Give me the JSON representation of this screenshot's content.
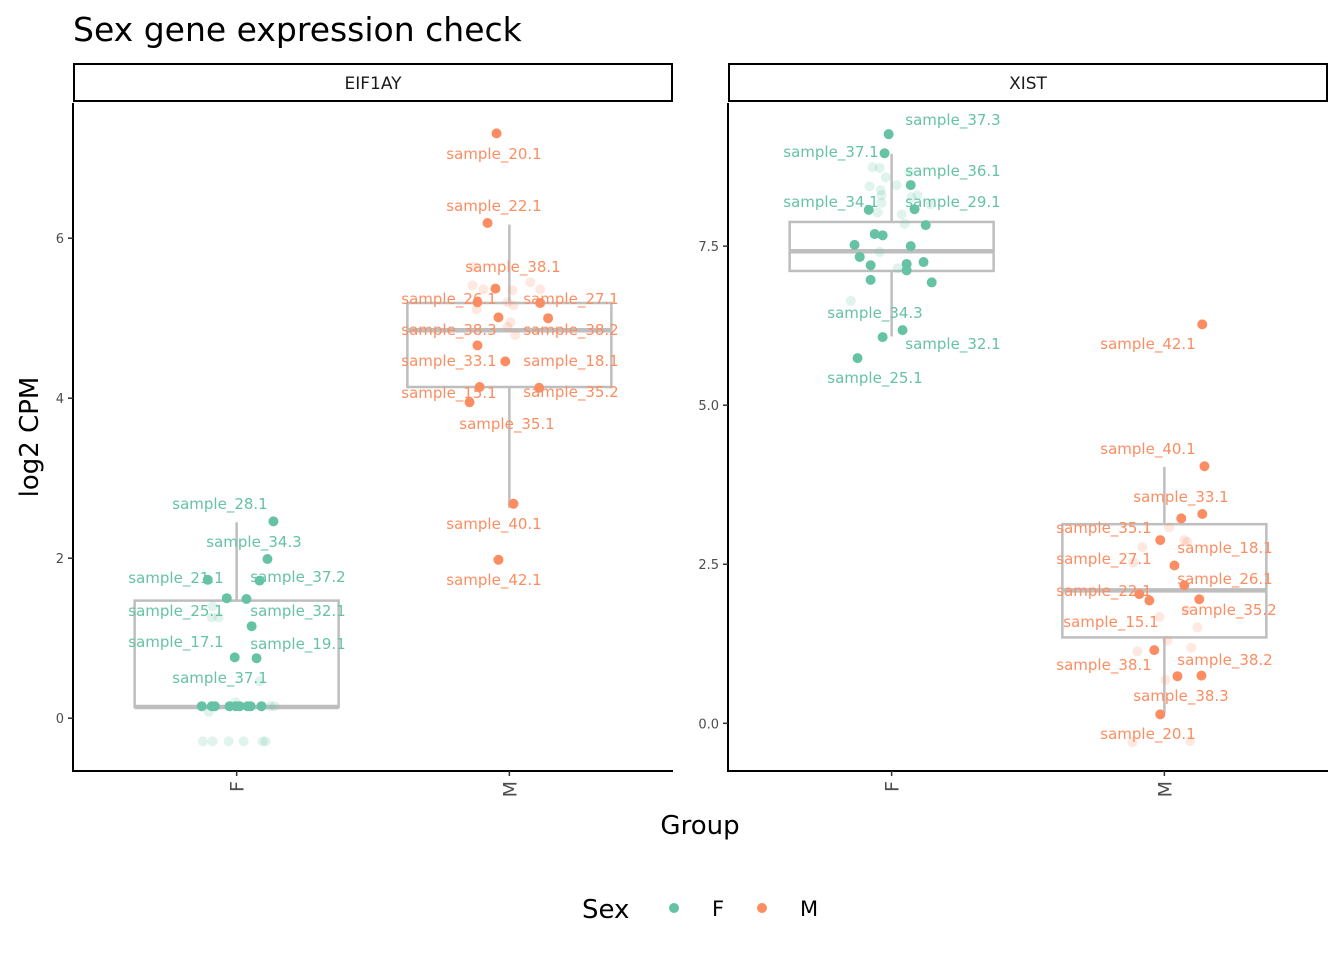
{
  "chart_data": {
    "type": "scatter",
    "title": "Sex gene expression check",
    "xlabel": "Group",
    "ylabel": "log2 CPM",
    "legend": {
      "title": "Sex",
      "position": "bottom",
      "entries": [
        {
          "label": "F",
          "color": "#66c2a5"
        },
        {
          "label": "M",
          "color": "#fc8d62"
        }
      ]
    },
    "box_color": "#bebebe",
    "categories": [
      "F",
      "M"
    ],
    "panels": [
      {
        "strip": "EIF1AY",
        "ylim": [
          -0.66,
          7.69
        ],
        "yticks": [
          {
            "v": 0,
            "label": "0"
          },
          {
            "v": 2,
            "label": "2"
          },
          {
            "v": 4,
            "label": "4"
          },
          {
            "v": 6,
            "label": "6"
          }
        ],
        "boxes": [
          {
            "group": "F",
            "q1": 0.14,
            "median": 0.14,
            "q3": 1.47,
            "whisker_low": 0.14,
            "whisker_high": 2.45
          },
          {
            "group": "M",
            "q1": 4.14,
            "median": 4.85,
            "q3": 5.19,
            "whisker_low": 2.63,
            "whisker_high": 6.17
          }
        ],
        "points": [
          {
            "sex": "F",
            "x": 1.135,
            "y": 2.46,
            "label": "sample_28.1"
          },
          {
            "sex": "F",
            "x": 1.113,
            "y": 1.99,
            "label": "sample_34.3"
          },
          {
            "sex": "F",
            "x": 0.894,
            "y": 1.73,
            "label": "sample_21.1"
          },
          {
            "sex": "F",
            "x": 1.084,
            "y": 1.72,
            "label": "sample_37.2"
          },
          {
            "sex": "F",
            "x": 0.964,
            "y": 1.5,
            "label": "sample_25.1"
          },
          {
            "sex": "F",
            "x": 1.036,
            "y": 1.49,
            "label": "sample_32.1"
          },
          {
            "sex": "F",
            "x": 1.055,
            "y": 1.15,
            "label": ""
          },
          {
            "sex": "F",
            "x": 0.993,
            "y": 0.76,
            "label": "sample_17.1"
          },
          {
            "sex": "F",
            "x": 1.073,
            "y": 0.75,
            "label": "sample_19.1"
          },
          {
            "sex": "F",
            "x": 0.996,
            "y": 0.15,
            "label": "sample_37.1"
          },
          {
            "sex": "F",
            "x": 0.872,
            "y": 0.15,
            "label": ""
          },
          {
            "sex": "F",
            "x": 0.909,
            "y": 0.15,
            "label": ""
          },
          {
            "sex": "F",
            "x": 0.92,
            "y": 0.15,
            "label": ""
          },
          {
            "sex": "F",
            "x": 0.974,
            "y": 0.15,
            "label": ""
          },
          {
            "sex": "F",
            "x": 1.011,
            "y": 0.15,
            "label": ""
          },
          {
            "sex": "F",
            "x": 1.04,
            "y": 0.15,
            "label": ""
          },
          {
            "sex": "F",
            "x": 1.051,
            "y": 0.15,
            "label": ""
          },
          {
            "sex": "F",
            "x": 1.091,
            "y": 0.15,
            "label": ""
          },
          {
            "sex": "M",
            "x": 1.953,
            "y": 7.31,
            "label": "sample_20.1"
          },
          {
            "sex": "M",
            "x": 1.92,
            "y": 6.19,
            "label": "sample_22.1"
          },
          {
            "sex": "M",
            "x": 1.949,
            "y": 5.37,
            "label": "sample_38.1"
          },
          {
            "sex": "M",
            "x": 1.883,
            "y": 5.2,
            "label": "sample_26.1"
          },
          {
            "sex": "M",
            "x": 2.113,
            "y": 5.19,
            "label": "sample_27.1"
          },
          {
            "sex": "M",
            "x": 1.96,
            "y": 5.01,
            "label": "sample_38.3"
          },
          {
            "sex": "M",
            "x": 2.142,
            "y": 5.0,
            "label": "sample_38.2"
          },
          {
            "sex": "M",
            "x": 1.883,
            "y": 4.66,
            "label": "sample_33.1"
          },
          {
            "sex": "M",
            "x": 1.985,
            "y": 4.46,
            "label": "sample_18.1"
          },
          {
            "sex": "M",
            "x": 1.891,
            "y": 4.14,
            "label": "sample_15.1"
          },
          {
            "sex": "M",
            "x": 2.109,
            "y": 4.13,
            "label": "sample_35.2"
          },
          {
            "sex": "M",
            "x": 1.854,
            "y": 3.95,
            "label": "sample_35.1"
          },
          {
            "sex": "M",
            "x": 2.015,
            "y": 2.68,
            "label": "sample_40.1"
          },
          {
            "sex": "M",
            "x": 1.96,
            "y": 1.98,
            "label": "sample_42.1"
          }
        ],
        "faded_points": [
          {
            "sex": "F",
            "x": 0.876,
            "y": -0.29
          },
          {
            "sex": "F",
            "x": 0.912,
            "y": -0.29
          },
          {
            "sex": "F",
            "x": 0.971,
            "y": -0.29
          },
          {
            "sex": "F",
            "x": 1.026,
            "y": -0.29
          },
          {
            "sex": "F",
            "x": 1.095,
            "y": -0.29
          },
          {
            "sex": "F",
            "x": 1.106,
            "y": -0.29
          },
          {
            "sex": "F",
            "x": 0.909,
            "y": 1.26
          },
          {
            "sex": "F",
            "x": 0.934,
            "y": 1.26
          },
          {
            "sex": "F",
            "x": 0.912,
            "y": 1.4
          },
          {
            "sex": "F",
            "x": 0.898,
            "y": 0.08
          },
          {
            "sex": "F",
            "x": 1.084,
            "y": 0.46
          },
          {
            "sex": "F",
            "x": 0.996,
            "y": 0.2
          },
          {
            "sex": "F",
            "x": 1.139,
            "y": 0.15
          },
          {
            "sex": "F",
            "x": 1.124,
            "y": 0.15
          },
          {
            "sex": "M",
            "x": 1.869,
            "y": 5.64
          },
          {
            "sex": "M",
            "x": 1.865,
            "y": 5.41
          },
          {
            "sex": "M",
            "x": 1.905,
            "y": 5.36
          },
          {
            "sex": "M",
            "x": 2.011,
            "y": 5.35
          },
          {
            "sex": "M",
            "x": 2.077,
            "y": 5.45
          },
          {
            "sex": "M",
            "x": 2.113,
            "y": 5.36
          },
          {
            "sex": "M",
            "x": 1.993,
            "y": 5.2
          },
          {
            "sex": "M",
            "x": 2.015,
            "y": 5.16
          },
          {
            "sex": "M",
            "x": 1.88,
            "y": 5.11
          },
          {
            "sex": "M",
            "x": 2.004,
            "y": 4.95
          },
          {
            "sex": "M",
            "x": 2.022,
            "y": 4.79
          },
          {
            "sex": "M",
            "x": 1.993,
            "y": 4.89
          }
        ]
      },
      {
        "strip": "XIST",
        "ylim": [
          -0.75,
          9.75
        ],
        "yticks": [
          {
            "v": 0,
            "label": "0.0"
          },
          {
            "v": 2.5,
            "label": "2.5"
          },
          {
            "v": 5,
            "label": "5.0"
          },
          {
            "v": 7.5,
            "label": "7.5"
          }
        ],
        "boxes": [
          {
            "group": "F",
            "q1": 7.11,
            "median": 7.42,
            "q3": 7.88,
            "whisker_low": 6.08,
            "whisker_high": 8.95
          },
          {
            "group": "M",
            "q1": 1.35,
            "median": 2.09,
            "q3": 3.13,
            "whisker_low": 0.16,
            "whisker_high": 4.03
          }
        ],
        "points": [
          {
            "sex": "F",
            "x": 0.989,
            "y": 9.26,
            "label": "sample_37.3"
          },
          {
            "sex": "F",
            "x": 0.974,
            "y": 8.96,
            "label": "sample_37.1"
          },
          {
            "sex": "F",
            "x": 1.07,
            "y": 8.46,
            "label": "sample_36.1"
          },
          {
            "sex": "F",
            "x": 0.916,
            "y": 8.07,
            "label": "sample_34.1"
          },
          {
            "sex": "F",
            "x": 1.084,
            "y": 8.08,
            "label": "sample_29.1"
          },
          {
            "sex": "F",
            "x": 1.125,
            "y": 7.83,
            "label": ""
          },
          {
            "sex": "F",
            "x": 0.938,
            "y": 7.69,
            "label": ""
          },
          {
            "sex": "F",
            "x": 0.967,
            "y": 7.67,
            "label": ""
          },
          {
            "sex": "F",
            "x": 0.864,
            "y": 7.52,
            "label": ""
          },
          {
            "sex": "F",
            "x": 1.07,
            "y": 7.5,
            "label": ""
          },
          {
            "sex": "F",
            "x": 0.883,
            "y": 7.33,
            "label": ""
          },
          {
            "sex": "F",
            "x": 0.923,
            "y": 7.2,
            "label": ""
          },
          {
            "sex": "F",
            "x": 1.055,
            "y": 7.22,
            "label": ""
          },
          {
            "sex": "F",
            "x": 1.055,
            "y": 7.12,
            "label": ""
          },
          {
            "sex": "F",
            "x": 1.117,
            "y": 7.25,
            "label": ""
          },
          {
            "sex": "F",
            "x": 0.923,
            "y": 6.97,
            "label": ""
          },
          {
            "sex": "F",
            "x": 1.147,
            "y": 6.93,
            "label": ""
          },
          {
            "sex": "F",
            "x": 1.04,
            "y": 6.18,
            "label": "sample_34.3"
          },
          {
            "sex": "F",
            "x": 0.967,
            "y": 6.07,
            "label": "sample_32.1"
          },
          {
            "sex": "F",
            "x": 0.875,
            "y": 5.74,
            "label": "sample_25.1"
          },
          {
            "sex": "M",
            "x": 2.139,
            "y": 6.27,
            "label": "sample_42.1"
          },
          {
            "sex": "M",
            "x": 2.147,
            "y": 4.04,
            "label": "sample_40.1"
          },
          {
            "sex": "M",
            "x": 2.139,
            "y": 3.29,
            "label": "sample_33.1"
          },
          {
            "sex": "M",
            "x": 2.062,
            "y": 3.22,
            "label": "sample_35.1"
          },
          {
            "sex": "M",
            "x": 1.985,
            "y": 2.88,
            "label": "sample_27.1"
          },
          {
            "sex": "M",
            "x": 2.037,
            "y": 2.48,
            "label": "sample_18.1"
          },
          {
            "sex": "M",
            "x": 2.073,
            "y": 2.17,
            "label": "sample_26.1"
          },
          {
            "sex": "M",
            "x": 1.908,
            "y": 2.03,
            "label": "sample_22.1"
          },
          {
            "sex": "M",
            "x": 1.945,
            "y": 1.93,
            "label": "sample_15.1"
          },
          {
            "sex": "M",
            "x": 2.128,
            "y": 1.95,
            "label": "sample_35.2"
          },
          {
            "sex": "M",
            "x": 1.963,
            "y": 1.15,
            "label": "sample_38.1"
          },
          {
            "sex": "M",
            "x": 2.136,
            "y": 0.75,
            "label": "sample_38.2"
          },
          {
            "sex": "M",
            "x": 2.048,
            "y": 0.74,
            "label": "sample_38.3"
          },
          {
            "sex": "M",
            "x": 1.985,
            "y": 0.14,
            "label": "sample_20.1"
          }
        ],
        "faded_points": [
          {
            "sex": "F",
            "x": 0.85,
            "y": 6.64
          },
          {
            "sex": "F",
            "x": 0.93,
            "y": 8.74
          },
          {
            "sex": "F",
            "x": 0.956,
            "y": 8.73
          },
          {
            "sex": "F",
            "x": 0.978,
            "y": 8.58
          },
          {
            "sex": "F",
            "x": 0.919,
            "y": 8.44
          },
          {
            "sex": "F",
            "x": 0.96,
            "y": 8.38
          },
          {
            "sex": "F",
            "x": 1.018,
            "y": 8.46
          },
          {
            "sex": "F",
            "x": 1.066,
            "y": 8.66
          },
          {
            "sex": "F",
            "x": 1.095,
            "y": 8.3
          },
          {
            "sex": "F",
            "x": 0.963,
            "y": 8.3
          },
          {
            "sex": "F",
            "x": 0.963,
            "y": 8.18
          },
          {
            "sex": "F",
            "x": 1.073,
            "y": 8.27
          },
          {
            "sex": "F",
            "x": 1.143,
            "y": 8.16
          },
          {
            "sex": "F",
            "x": 0.949,
            "y": 8.03
          },
          {
            "sex": "F",
            "x": 1.037,
            "y": 8.0
          },
          {
            "sex": "F",
            "x": 1.048,
            "y": 7.85
          },
          {
            "sex": "F",
            "x": 0.956,
            "y": 7.41
          },
          {
            "sex": "F",
            "x": 1.022,
            "y": 7.15
          },
          {
            "sex": "M",
            "x": 2.018,
            "y": 3.08
          },
          {
            "sex": "M",
            "x": 2.073,
            "y": 2.88
          },
          {
            "sex": "M",
            "x": 1.919,
            "y": 2.77
          },
          {
            "sex": "M",
            "x": 1.886,
            "y": 2.53
          },
          {
            "sex": "M",
            "x": 2.084,
            "y": 2.85
          },
          {
            "sex": "M",
            "x": 1.982,
            "y": 1.67
          },
          {
            "sex": "M",
            "x": 2.121,
            "y": 1.51
          },
          {
            "sex": "M",
            "x": 2.099,
            "y": 1.19
          },
          {
            "sex": "M",
            "x": 2.011,
            "y": 1.3
          },
          {
            "sex": "M",
            "x": 1.901,
            "y": 1.13
          },
          {
            "sex": "M",
            "x": 2.004,
            "y": 0.68
          },
          {
            "sex": "M",
            "x": 1.883,
            "y": -0.3
          },
          {
            "sex": "M",
            "x": 2.095,
            "y": -0.28
          },
          {
            "sex": "M",
            "x": 2.081,
            "y": 1.78
          }
        ]
      }
    ],
    "xlim": [
      0.4,
      2.6
    ],
    "grid": false
  }
}
